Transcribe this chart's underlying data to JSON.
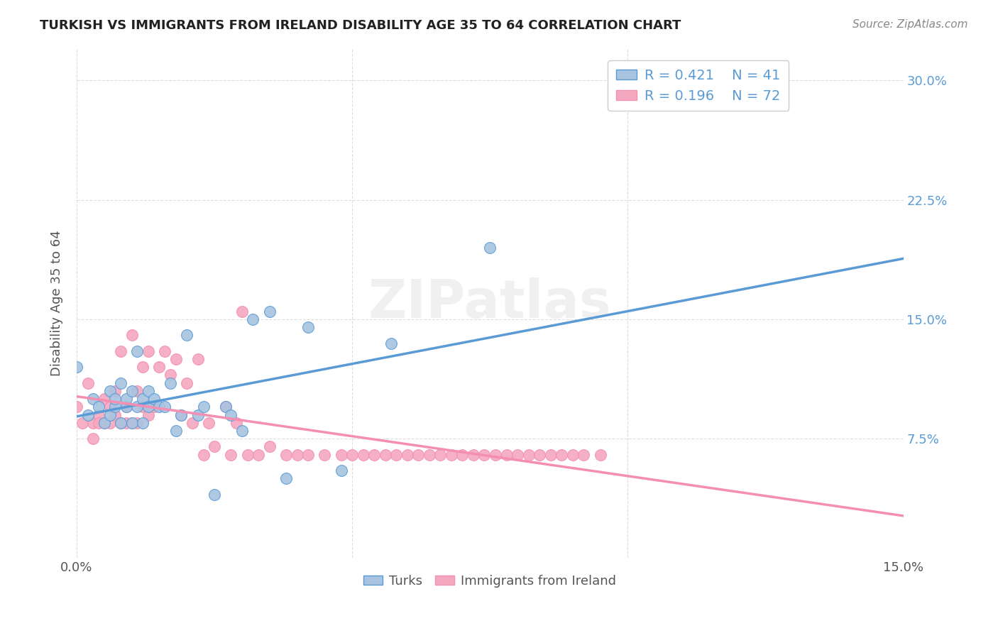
{
  "title": "TURKISH VS IMMIGRANTS FROM IRELAND DISABILITY AGE 35 TO 64 CORRELATION CHART",
  "source": "Source: ZipAtlas.com",
  "ylabel": "Disability Age 35 to 64",
  "xlim": [
    0.0,
    0.15
  ],
  "ylim": [
    0.0,
    0.32
  ],
  "legend_R1": "R = 0.421",
  "legend_N1": "N = 41",
  "legend_R2": "R = 0.196",
  "legend_N2": "N = 72",
  "turks_color": "#a8c4e0",
  "ireland_color": "#f4a8c0",
  "line_turks_color": "#5b9bd5",
  "line_ireland_color": "#f48fb1",
  "watermark": "ZIPatlas",
  "turks_x": [
    0.0,
    0.002,
    0.003,
    0.004,
    0.005,
    0.006,
    0.006,
    0.007,
    0.007,
    0.008,
    0.008,
    0.009,
    0.009,
    0.01,
    0.01,
    0.011,
    0.011,
    0.012,
    0.012,
    0.013,
    0.013,
    0.014,
    0.015,
    0.016,
    0.017,
    0.018,
    0.019,
    0.02,
    0.022,
    0.023,
    0.025,
    0.027,
    0.028,
    0.03,
    0.032,
    0.035,
    0.038,
    0.042,
    0.048,
    0.057,
    0.075
  ],
  "turks_y": [
    0.12,
    0.09,
    0.1,
    0.095,
    0.085,
    0.105,
    0.09,
    0.095,
    0.1,
    0.11,
    0.085,
    0.095,
    0.1,
    0.105,
    0.085,
    0.095,
    0.13,
    0.085,
    0.1,
    0.095,
    0.105,
    0.1,
    0.095,
    0.095,
    0.11,
    0.08,
    0.09,
    0.14,
    0.09,
    0.095,
    0.04,
    0.095,
    0.09,
    0.08,
    0.15,
    0.155,
    0.05,
    0.145,
    0.055,
    0.135,
    0.195
  ],
  "ireland_x": [
    0.0,
    0.001,
    0.002,
    0.003,
    0.003,
    0.004,
    0.004,
    0.005,
    0.005,
    0.006,
    0.006,
    0.007,
    0.007,
    0.008,
    0.008,
    0.009,
    0.009,
    0.01,
    0.01,
    0.011,
    0.011,
    0.012,
    0.012,
    0.013,
    0.013,
    0.014,
    0.015,
    0.016,
    0.017,
    0.018,
    0.019,
    0.02,
    0.021,
    0.022,
    0.023,
    0.024,
    0.025,
    0.027,
    0.028,
    0.029,
    0.03,
    0.031,
    0.033,
    0.035,
    0.038,
    0.04,
    0.042,
    0.045,
    0.048,
    0.05,
    0.052,
    0.054,
    0.056,
    0.058,
    0.06,
    0.062,
    0.064,
    0.066,
    0.068,
    0.07,
    0.072,
    0.074,
    0.076,
    0.078,
    0.08,
    0.082,
    0.084,
    0.086,
    0.088,
    0.09,
    0.092,
    0.095
  ],
  "ireland_y": [
    0.095,
    0.085,
    0.11,
    0.085,
    0.075,
    0.09,
    0.085,
    0.1,
    0.085,
    0.095,
    0.085,
    0.09,
    0.105,
    0.085,
    0.13,
    0.085,
    0.095,
    0.14,
    0.085,
    0.105,
    0.085,
    0.12,
    0.095,
    0.09,
    0.13,
    0.095,
    0.12,
    0.13,
    0.115,
    0.125,
    0.09,
    0.11,
    0.085,
    0.125,
    0.065,
    0.085,
    0.07,
    0.095,
    0.065,
    0.085,
    0.155,
    0.065,
    0.065,
    0.07,
    0.065,
    0.065,
    0.065,
    0.065,
    0.065,
    0.065,
    0.065,
    0.065,
    0.065,
    0.065,
    0.065,
    0.065,
    0.065,
    0.065,
    0.065,
    0.065,
    0.065,
    0.065,
    0.065,
    0.065,
    0.065,
    0.065,
    0.065,
    0.065,
    0.065,
    0.065,
    0.065,
    0.065
  ]
}
